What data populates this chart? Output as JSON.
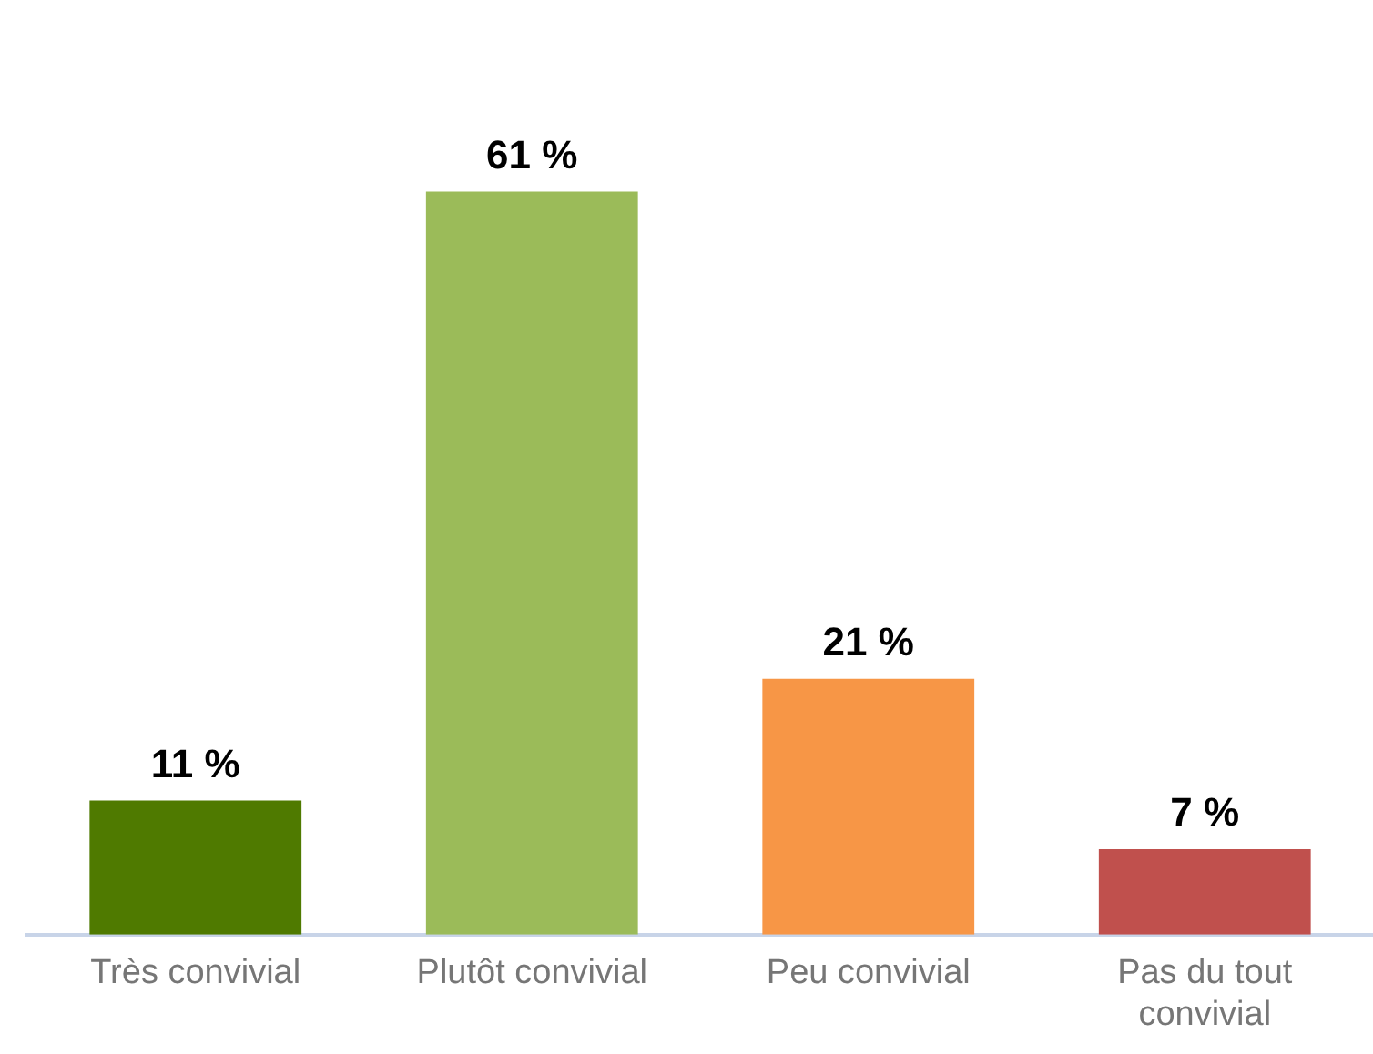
{
  "chart_data": {
    "type": "bar",
    "categories": [
      "Très convivial",
      "Plutôt convivial",
      "Peu convivial",
      "Pas du tout convivial"
    ],
    "values": [
      11,
      61,
      21,
      7
    ],
    "colors": [
      "#4f7a00",
      "#9bbb59",
      "#f79646",
      "#c0504d"
    ],
    "value_labels": [
      "11 %",
      "61 %",
      "21 %",
      "7 %"
    ],
    "grid": false,
    "legend": false
  }
}
